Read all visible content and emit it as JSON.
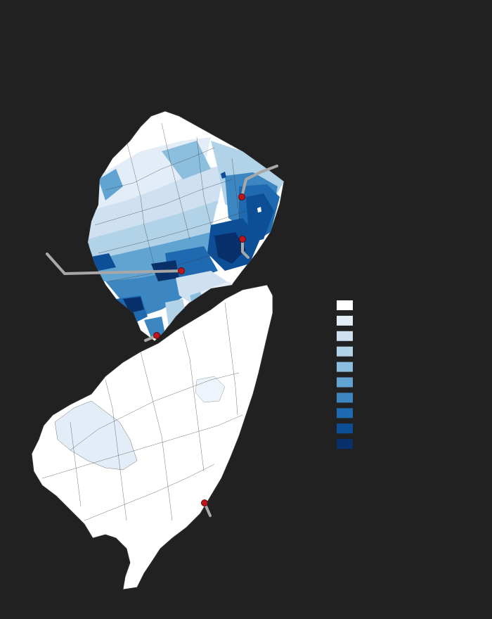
{
  "map": {
    "background": "#212121",
    "land_default": "#ffffff",
    "border_color": "#333333",
    "leader_color": "#a8a8a8",
    "marker_color": "#c0151b"
  },
  "legend": {
    "classes": [
      {
        "color": "#ffffff"
      },
      {
        "color": "#e3edf8"
      },
      {
        "color": "#cfe0f1"
      },
      {
        "color": "#b2d2e8"
      },
      {
        "color": "#8cbfde"
      },
      {
        "color": "#62a4d1"
      },
      {
        "color": "#3c87c1"
      },
      {
        "color": "#1f69b0"
      },
      {
        "color": "#0c4f96"
      },
      {
        "color": "#08306b"
      }
    ]
  },
  "markers": [
    {
      "id": "marker-paterson"
    },
    {
      "id": "marker-newark"
    },
    {
      "id": "marker-new-brunswick"
    },
    {
      "id": "marker-trenton"
    },
    {
      "id": "marker-atlantic-coast"
    }
  ]
}
